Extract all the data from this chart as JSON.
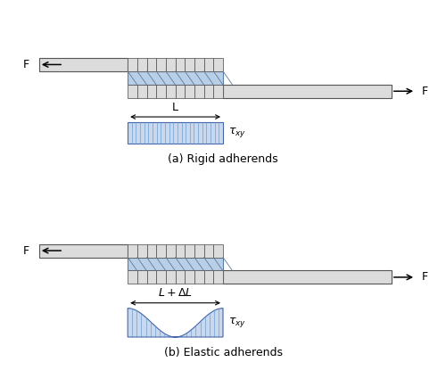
{
  "fig_width": 5.0,
  "fig_height": 4.34,
  "dpi": 100,
  "background_color": "#ffffff",
  "adherend_color": "#dcdcdc",
  "adherend_edge_color": "#555555",
  "adhesive_color": "#b8cfe8",
  "adhesive_edge_color": "#5580aa",
  "stress_fill_color": "#c8d8ee",
  "stress_line_color": "#6699cc",
  "stress_edge_color": "#4466aa",
  "label_a": "(a) Rigid adherends",
  "label_b": "(b) Elastic adherends",
  "tau_label": "$\\tau_{xy}$",
  "F_label": "F",
  "L_label": "L",
  "LdL_label": "$L+\\Delta L$"
}
